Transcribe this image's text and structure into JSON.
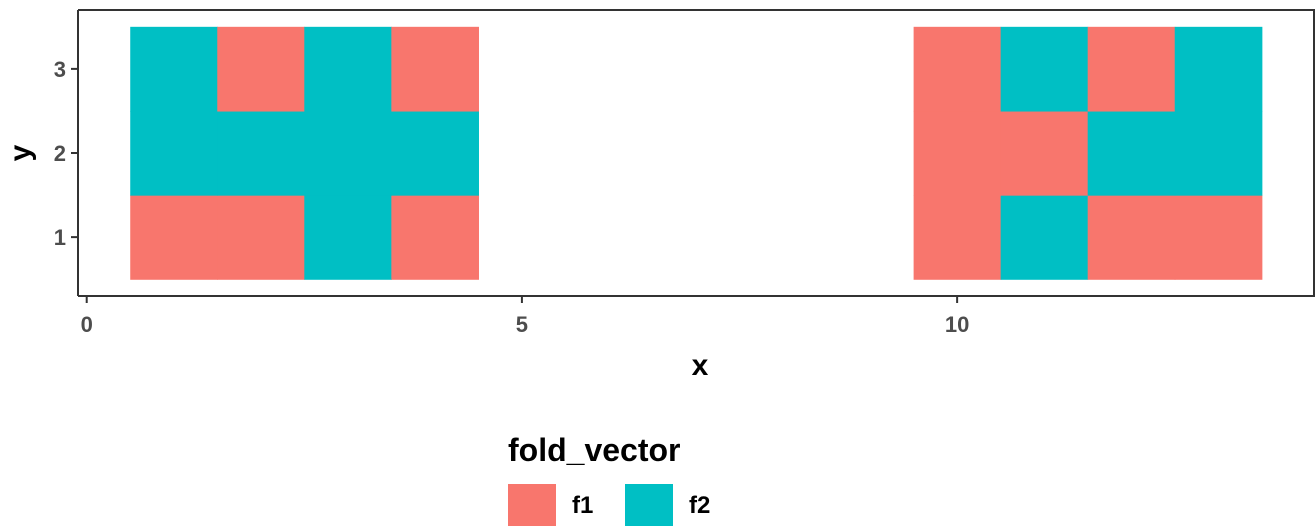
{
  "chart_data": {
    "type": "heatmap",
    "xlabel": "x",
    "ylabel": "y",
    "xlim": [
      -0.1,
      14.1
    ],
    "ylim": [
      0.3,
      3.7
    ],
    "x_ticks": [
      0,
      5,
      10
    ],
    "y_ticks": [
      1,
      2,
      3
    ],
    "grid": false,
    "legend": {
      "title": "fold_vector",
      "position": "bottom",
      "entries": [
        {
          "label": "f1",
          "color": "#F8766D"
        },
        {
          "label": "f2",
          "color": "#00BFC4"
        }
      ]
    },
    "tiles": [
      {
        "x": 1,
        "y": 1,
        "fold": "f1"
      },
      {
        "x": 2,
        "y": 1,
        "fold": "f1"
      },
      {
        "x": 3,
        "y": 1,
        "fold": "f2"
      },
      {
        "x": 4,
        "y": 1,
        "fold": "f1"
      },
      {
        "x": 1,
        "y": 2,
        "fold": "f2"
      },
      {
        "x": 2,
        "y": 2,
        "fold": "f2"
      },
      {
        "x": 3,
        "y": 2,
        "fold": "f2"
      },
      {
        "x": 4,
        "y": 2,
        "fold": "f2"
      },
      {
        "x": 1,
        "y": 3,
        "fold": "f2"
      },
      {
        "x": 2,
        "y": 3,
        "fold": "f1"
      },
      {
        "x": 3,
        "y": 3,
        "fold": "f2"
      },
      {
        "x": 4,
        "y": 3,
        "fold": "f1"
      },
      {
        "x": 10,
        "y": 1,
        "fold": "f1"
      },
      {
        "x": 11,
        "y": 1,
        "fold": "f2"
      },
      {
        "x": 12,
        "y": 1,
        "fold": "f1"
      },
      {
        "x": 13,
        "y": 1,
        "fold": "f1"
      },
      {
        "x": 10,
        "y": 2,
        "fold": "f1"
      },
      {
        "x": 11,
        "y": 2,
        "fold": "f1"
      },
      {
        "x": 12,
        "y": 2,
        "fold": "f2"
      },
      {
        "x": 13,
        "y": 2,
        "fold": "f2"
      },
      {
        "x": 10,
        "y": 3,
        "fold": "f1"
      },
      {
        "x": 11,
        "y": 3,
        "fold": "f2"
      },
      {
        "x": 12,
        "y": 3,
        "fold": "f1"
      },
      {
        "x": 13,
        "y": 3,
        "fold": "f2"
      }
    ]
  }
}
